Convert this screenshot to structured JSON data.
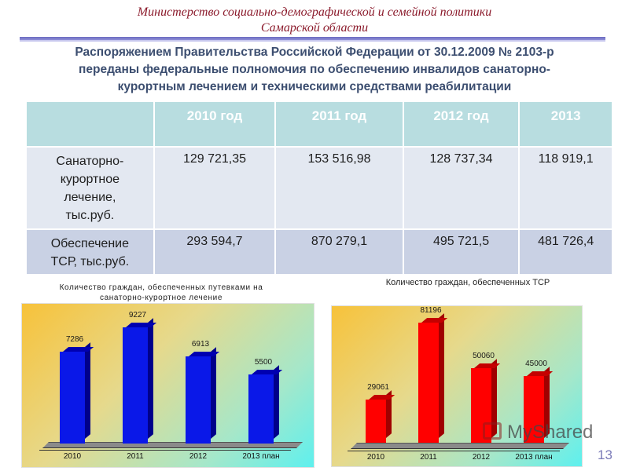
{
  "header": {
    "ministry_line1": "Министерство социально-демографической  и семейной политики",
    "ministry_line2": "Самарской области"
  },
  "headline": {
    "line1": "Распоряжением Правительства Российской Федерации от 30.12.2009 № 2103-р",
    "line2": "переданы федеральные полномочия по обеспечению инвалидов санаторно-",
    "line3": "курортным лечением и техническими средствами реабилитации"
  },
  "table": {
    "headers": [
      "",
      "2010 год",
      "2011 год",
      "2012 год",
      "2013"
    ],
    "rows": [
      {
        "label": "Санаторно-курортное лечение, тыс.руб.",
        "label_lines": [
          "Санаторно-",
          "курортное",
          "лечение,",
          "тыс.руб."
        ],
        "values": [
          "129 721,35",
          "153 516,98",
          "128 737,34",
          "118 919,1"
        ]
      },
      {
        "label": "Обеспечение ТСР, тыс.руб.",
        "label_lines": [
          "Обеспечение",
          "ТСР, тыс.руб."
        ],
        "values": [
          "293 594,7",
          "870 279,1",
          "495 721,5",
          "481 726,4"
        ]
      }
    ]
  },
  "chart_data": [
    {
      "type": "bar",
      "title": "Количество граждан, обеспеченных путевками на санаторно-курортное лечение",
      "title_line1": "Количество граждан, обеспеченных путевками на",
      "title_line2": "санаторно-курортное лечение",
      "categories": [
        "2010",
        "2011",
        "2012",
        "2013 план"
      ],
      "values": [
        7286,
        9227,
        6913,
        5500
      ],
      "value_labels": [
        "7286",
        "9227",
        "6913",
        "5500"
      ],
      "color": "#0a18e8",
      "xlabel": "",
      "ylabel": "",
      "ylim": [
        0,
        10000
      ],
      "grid": false,
      "style": "3d-column"
    },
    {
      "type": "bar",
      "title": "Количество граждан, обеспеченных ТСР",
      "categories": [
        "2010",
        "2011",
        "2012",
        "2013 план"
      ],
      "values": [
        29061,
        81196,
        50060,
        45000
      ],
      "value_labels": [
        "29061",
        "81196",
        "50060",
        "45000"
      ],
      "color": "#ff0000",
      "xlabel": "",
      "ylabel": "",
      "ylim": [
        0,
        90000
      ],
      "grid": false,
      "style": "3d-column"
    }
  ],
  "footer": {
    "watermark": "MyShared",
    "page_number": "13"
  }
}
